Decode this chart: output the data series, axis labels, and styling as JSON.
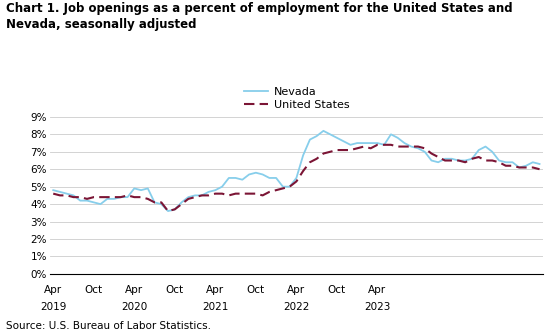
{
  "title": "Chart 1. Job openings as a percent of employment for the United States and\nNevada, seasonally adjusted",
  "source": "Source: U.S. Bureau of Labor Statistics.",
  "nevada_color": "#87CEEB",
  "us_color": "#7B1535",
  "ylim": [
    0,
    9
  ],
  "yticks": [
    0,
    1,
    2,
    3,
    4,
    5,
    6,
    7,
    8,
    9
  ],
  "nevada_label": "Nevada",
  "us_label": "United States",
  "nevada": [
    4.8,
    4.7,
    4.6,
    4.5,
    4.2,
    4.2,
    4.1,
    4.0,
    4.3,
    4.3,
    4.4,
    4.4,
    4.9,
    4.8,
    4.9,
    4.1,
    4.0,
    3.6,
    3.7,
    4.1,
    4.4,
    4.5,
    4.5,
    4.7,
    4.8,
    5.0,
    5.5,
    5.5,
    5.4,
    5.7,
    5.8,
    5.7,
    5.5,
    5.5,
    5.0,
    5.0,
    5.5,
    6.8,
    7.7,
    7.9,
    8.2,
    8.0,
    7.8,
    7.6,
    7.4,
    7.5,
    7.5,
    7.5,
    7.5,
    7.4,
    8.0,
    7.8,
    7.5,
    7.3,
    7.2,
    7.0,
    6.5,
    6.4,
    6.6,
    6.6,
    6.5,
    6.5,
    6.6,
    7.1,
    7.3,
    7.0,
    6.5,
    6.4,
    6.4,
    6.1,
    6.2,
    6.4,
    6.3
  ],
  "us": [
    4.6,
    4.5,
    4.5,
    4.4,
    4.4,
    4.3,
    4.4,
    4.4,
    4.4,
    4.4,
    4.4,
    4.5,
    4.4,
    4.4,
    4.3,
    4.1,
    4.1,
    3.6,
    3.7,
    4.0,
    4.3,
    4.4,
    4.5,
    4.5,
    4.6,
    4.6,
    4.5,
    4.6,
    4.6,
    4.6,
    4.6,
    4.5,
    4.7,
    4.8,
    4.9,
    5.0,
    5.3,
    5.9,
    6.4,
    6.6,
    6.9,
    7.0,
    7.1,
    7.1,
    7.1,
    7.2,
    7.3,
    7.2,
    7.4,
    7.4,
    7.4,
    7.3,
    7.3,
    7.3,
    7.3,
    7.2,
    6.9,
    6.7,
    6.5,
    6.5,
    6.5,
    6.4,
    6.6,
    6.7,
    6.5,
    6.5,
    6.4,
    6.2,
    6.2,
    6.1,
    6.1,
    6.1,
    6.0
  ],
  "xtick_pos": [
    0,
    6,
    12,
    18,
    24,
    30,
    36,
    42,
    48
  ],
  "month_labels": [
    "Apr",
    "Oct",
    "Apr",
    "Oct",
    "Apr",
    "Oct",
    "Apr",
    "Oct",
    "Apr"
  ],
  "year_labels": [
    "2019",
    "",
    "2020",
    "",
    "2021",
    "",
    "2022",
    "",
    "2023"
  ]
}
